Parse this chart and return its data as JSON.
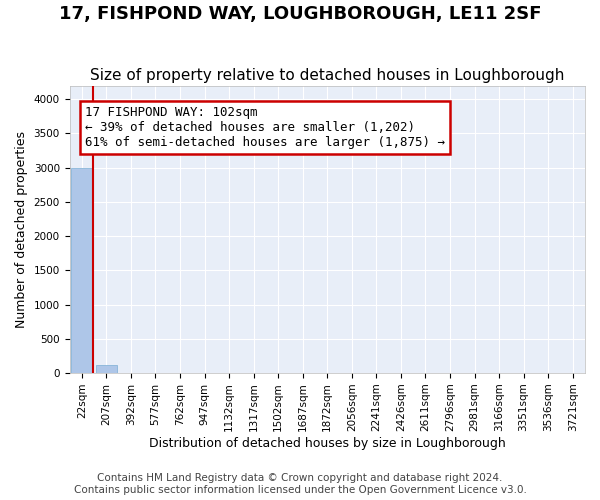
{
  "title": "17, FISHPOND WAY, LOUGHBOROUGH, LE11 2SF",
  "subtitle": "Size of property relative to detached houses in Loughborough",
  "xlabel": "Distribution of detached houses by size in Loughborough",
  "ylabel": "Number of detached properties",
  "footer1": "Contains HM Land Registry data © Crown copyright and database right 2024.",
  "footer2": "Contains public sector information licensed under the Open Government Licence v3.0.",
  "bin_labels": [
    "22sqm",
    "207sqm",
    "392sqm",
    "577sqm",
    "762sqm",
    "947sqm",
    "1132sqm",
    "1317sqm",
    "1502sqm",
    "1687sqm",
    "1872sqm",
    "2056sqm",
    "2241sqm",
    "2426sqm",
    "2611sqm",
    "2796sqm",
    "2981sqm",
    "3166sqm",
    "3351sqm",
    "3536sqm",
    "3721sqm"
  ],
  "bar_values": [
    3000,
    110,
    0,
    0,
    0,
    0,
    0,
    0,
    0,
    0,
    0,
    0,
    0,
    0,
    0,
    0,
    0,
    0,
    0,
    0,
    0
  ],
  "bar_color": "#aec6e8",
  "bar_edge_color": "#7aadd4",
  "background_color": "#e8eef8",
  "grid_color": "#ffffff",
  "annotation_text": "17 FISHPOND WAY: 102sqm\n← 39% of detached houses are smaller (1,202)\n61% of semi-detached houses are larger (1,875) →",
  "annotation_box_color": "#ffffff",
  "annotation_border_color": "#cc0000",
  "property_line_color": "#cc0000",
  "property_line_x": 0.46,
  "ylim": [
    0,
    4200
  ],
  "yticks": [
    0,
    500,
    1000,
    1500,
    2000,
    2500,
    3000,
    3500,
    4000
  ],
  "title_fontsize": 13,
  "subtitle_fontsize": 11,
  "axis_label_fontsize": 9,
  "tick_fontsize": 7.5,
  "annotation_fontsize": 9,
  "footer_fontsize": 7.5
}
